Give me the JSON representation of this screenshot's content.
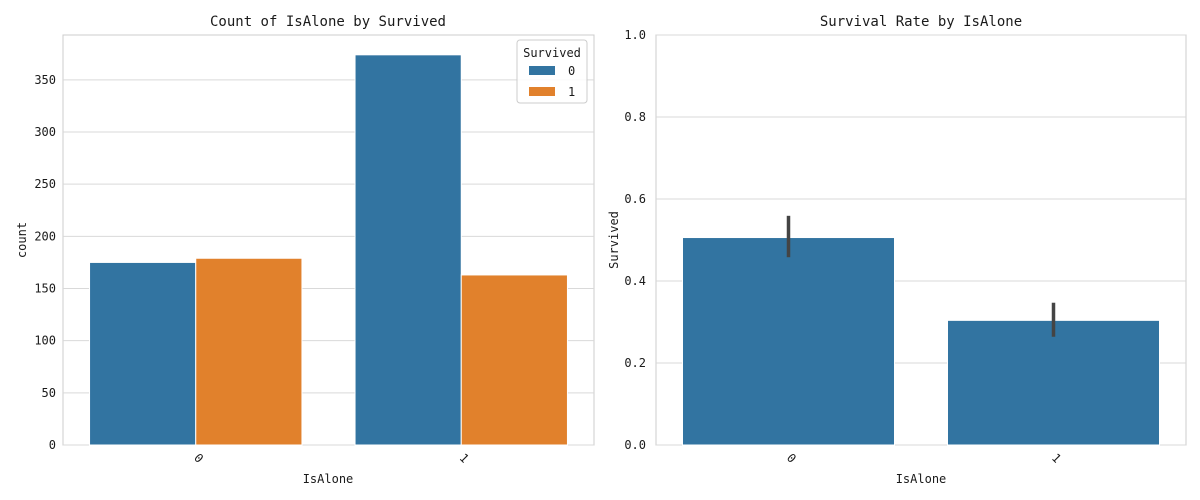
{
  "chart_data": [
    {
      "type": "bar",
      "title": "Count of IsAlone by Survived",
      "xlabel": "IsAlone",
      "ylabel": "count",
      "categories": [
        "0",
        "1"
      ],
      "ylim": [
        0,
        393
      ],
      "yticks": [
        "0",
        "50",
        "100",
        "150",
        "200",
        "250",
        "300",
        "350"
      ],
      "grid": "y",
      "legend": {
        "title": "Survived",
        "position": "top-right"
      },
      "series": [
        {
          "name": "0",
          "color": "#3274a1",
          "values": [
            175,
            374
          ]
        },
        {
          "name": "1",
          "color": "#e1812c",
          "values": [
            179,
            163
          ]
        }
      ]
    },
    {
      "type": "bar",
      "title": "Survival Rate by IsAlone",
      "xlabel": "IsAlone",
      "ylabel": "Survived",
      "categories": [
        "0",
        "1"
      ],
      "ylim": [
        0,
        1.0
      ],
      "yticks": [
        "0.0",
        "0.2",
        "0.4",
        "0.6",
        "0.8",
        "1.0"
      ],
      "grid": "y",
      "color": "#3274a1",
      "values": [
        0.506,
        0.304
      ],
      "error_bars": [
        [
          0.458,
          0.559
        ],
        [
          0.264,
          0.347
        ]
      ]
    }
  ]
}
